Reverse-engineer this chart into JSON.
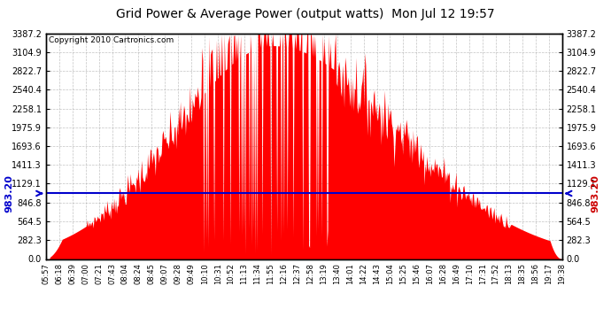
{
  "title": "Grid Power & Average Power (output watts)  Mon Jul 12 19:57",
  "copyright": "Copyright 2010 Cartronics.com",
  "avg_power": 983.2,
  "ymax": 3387.2,
  "yticks": [
    0.0,
    282.3,
    564.5,
    846.8,
    1129.1,
    1411.3,
    1693.6,
    1975.9,
    2258.1,
    2540.4,
    2822.7,
    3104.9,
    3387.2
  ],
  "background_color": "#ffffff",
  "fill_color": "#ff0000",
  "avg_line_color": "#0000cc",
  "grid_color": "#aaaaaa",
  "title_color": "#000000",
  "copyright_color": "#000000",
  "avg_label_left_color": "#0000cc",
  "avg_label_right_color": "#cc0000",
  "x_tick_labels": [
    "05:57",
    "06:18",
    "06:39",
    "07:00",
    "07:21",
    "07:43",
    "08:04",
    "08:24",
    "08:45",
    "09:07",
    "09:28",
    "09:49",
    "10:10",
    "10:31",
    "10:52",
    "11:13",
    "11:34",
    "11:55",
    "12:16",
    "12:37",
    "12:58",
    "13:19",
    "13:40",
    "14:01",
    "14:22",
    "14:43",
    "15:04",
    "15:25",
    "15:46",
    "16:07",
    "16:28",
    "16:49",
    "17:10",
    "17:31",
    "17:52",
    "18:13",
    "18:35",
    "18:56",
    "19:17",
    "19:38"
  ]
}
